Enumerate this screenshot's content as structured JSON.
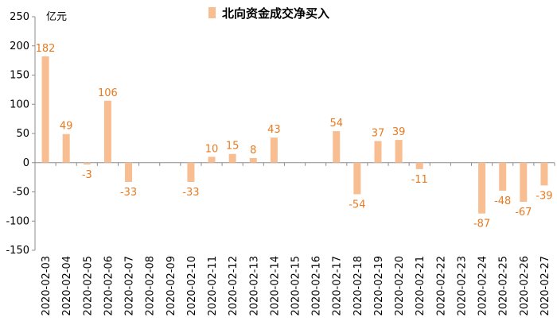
{
  "chart_data": {
    "type": "bar",
    "title": "",
    "unit_label": "亿元",
    "legend_position": "top-center",
    "bar_color": "#F8BE91",
    "label_color": "#E97A1F",
    "grid": false,
    "ylim": [
      -150,
      250
    ],
    "yticks": [
      -150,
      -100,
      -50,
      0,
      50,
      100,
      150,
      200,
      250
    ],
    "categories": [
      "2020-02-03",
      "2020-02-04",
      "2020-02-05",
      "2020-02-06",
      "2020-02-07",
      "2020-02-08",
      "2020-02-09",
      "2020-02-10",
      "2020-02-11",
      "2020-02-12",
      "2020-02-13",
      "2020-02-14",
      "2020-02-15",
      "2020-02-16",
      "2020-02-17",
      "2020-02-18",
      "2020-02-19",
      "2020-02-20",
      "2020-02-21",
      "2020-02-22",
      "2020-02-23",
      "2020-02-24",
      "2020-02-25",
      "2020-02-26",
      "2020-02-27"
    ],
    "series": [
      {
        "name": "北向资金成交净买入",
        "values": [
          182,
          49,
          -3,
          106,
          -33,
          null,
          null,
          -33,
          10,
          15,
          8,
          43,
          null,
          null,
          54,
          -54,
          37,
          39,
          -11,
          null,
          null,
          -87,
          -48,
          -67,
          -39
        ]
      }
    ]
  }
}
